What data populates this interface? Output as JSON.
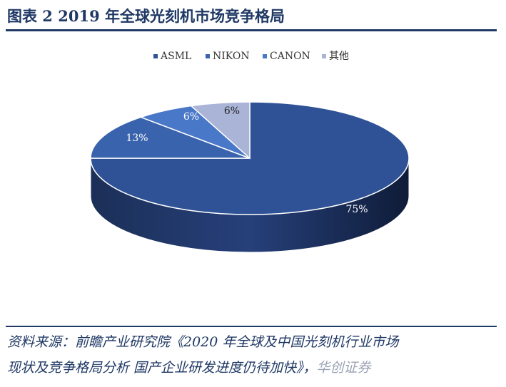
{
  "header": {
    "title": "图表 2   2019 年全球光刻机市场竞争格局"
  },
  "chart_data": {
    "type": "pie",
    "title": "",
    "categories": [
      "ASML",
      "NIKON",
      "CANON",
      "其他"
    ],
    "values": [
      75,
      13,
      6,
      6
    ],
    "labels": [
      "75%",
      "13%",
      "6%",
      "6%"
    ],
    "colors": [
      "#2f5296",
      "#3a63ad",
      "#4a78c8",
      "#aab4d6"
    ],
    "legend_position": "top"
  },
  "footer": {
    "source_line1": "资料来源：前瞻产业研究院《2020 年全球及中国光刻机行业市场",
    "source_line2": "现状及竞争格局分析 国产企业研发进度仍待加快》，",
    "watermark": "华创证券"
  }
}
